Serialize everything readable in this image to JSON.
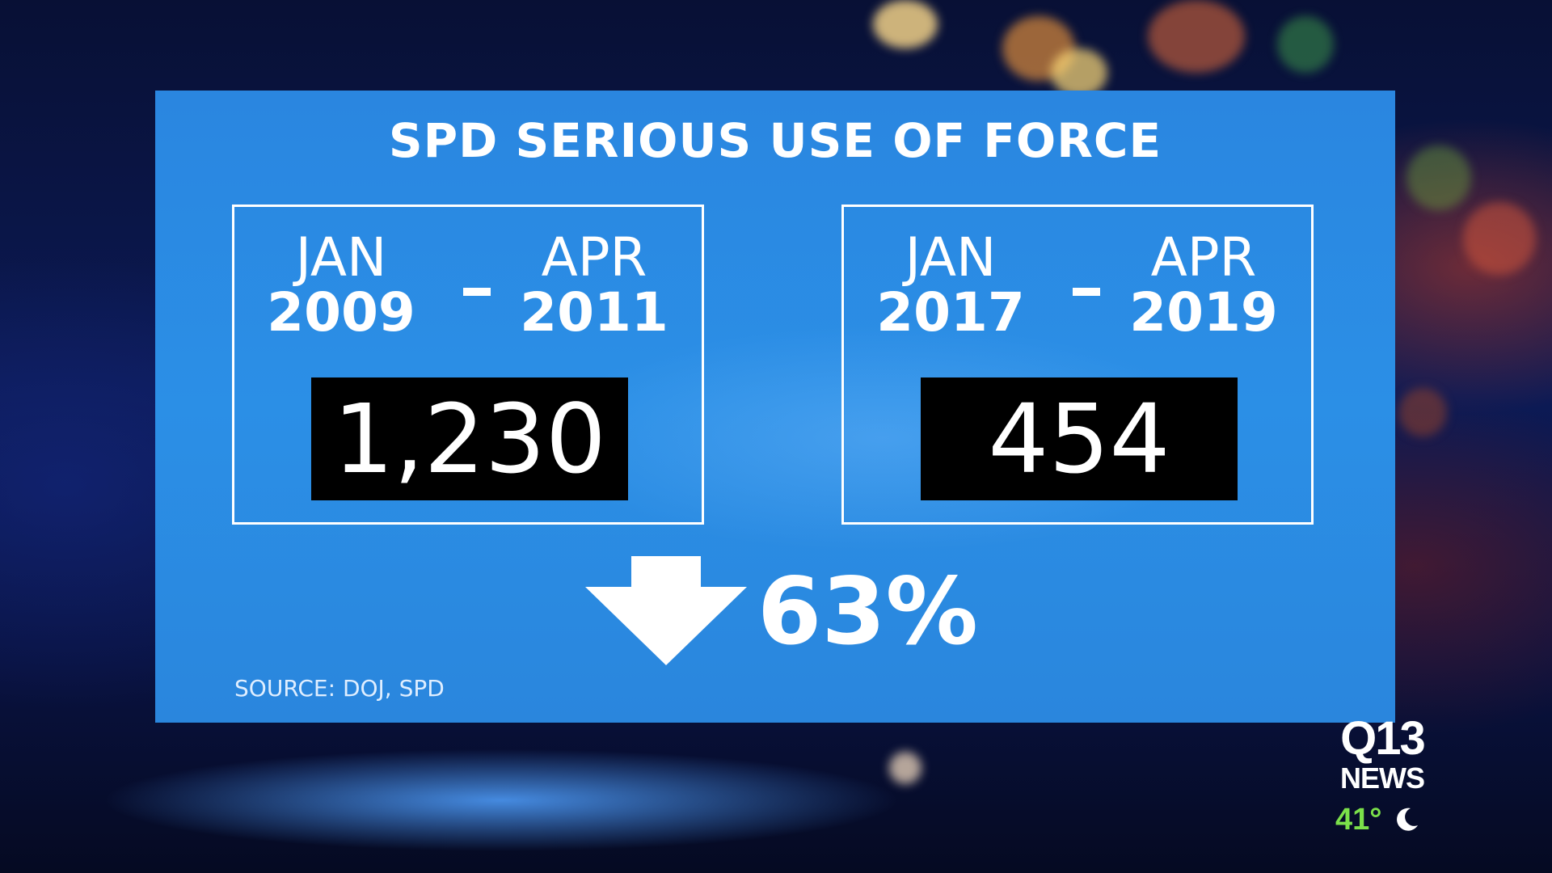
{
  "title": "SPD SERIOUS USE OF FORCE",
  "periods": [
    {
      "start_month": "JAN",
      "start_year": "2009",
      "end_month": "APR",
      "end_year": "2011",
      "value": "1,230"
    },
    {
      "start_month": "JAN",
      "start_year": "2017",
      "end_month": "APR",
      "end_year": "2019",
      "value": "454"
    }
  ],
  "change": {
    "direction_icon": "down-arrow-icon",
    "percent": "63%"
  },
  "source": "SOURCE: DOJ, SPD",
  "station": {
    "brand_line1": "Q13",
    "brand_line2": "NEWS",
    "temperature": "41°",
    "weather_icon": "moon-icon"
  },
  "colors": {
    "panel": "#2b8fe6",
    "value_box": "#000000",
    "temperature": "#7be04a"
  }
}
